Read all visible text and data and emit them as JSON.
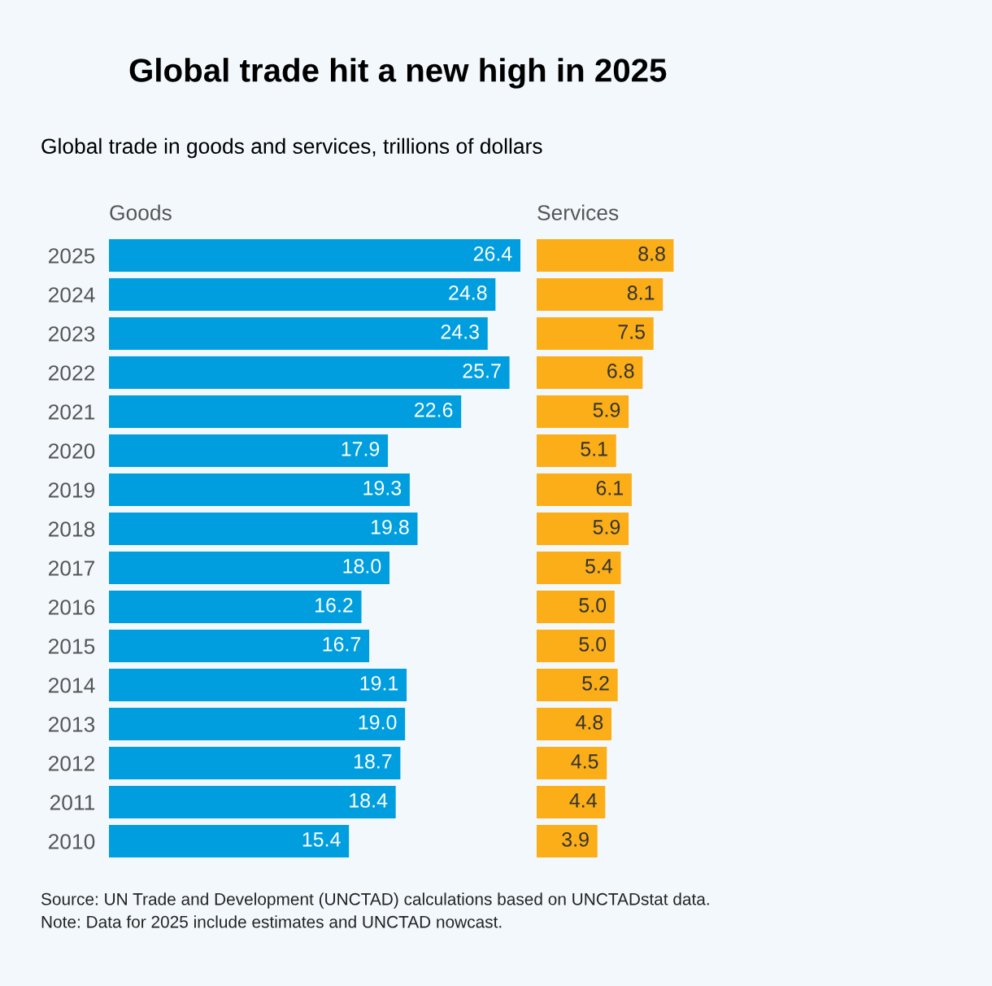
{
  "chart_data": [
    {
      "type": "bar",
      "orientation": "horizontal",
      "title": "Global trade hit a new high in 2025",
      "subtitle": "Global trade in goods and services, trillions of dollars",
      "xlabel": "Goods",
      "categories": [
        "2025",
        "2024",
        "2023",
        "2022",
        "2021",
        "2020",
        "2019",
        "2018",
        "2017",
        "2016",
        "2015",
        "2014",
        "2013",
        "2012",
        "2011",
        "2010"
      ],
      "series": [
        {
          "color": "#009ede",
          "values": [
            26.4,
            24.8,
            24.3,
            25.7,
            22.6,
            17.9,
            19.3,
            19.8,
            18.0,
            16.2,
            16.7,
            19.1,
            19.0,
            18.7,
            18.4,
            15.4
          ],
          "value_labels": [
            "26.4",
            "24.8",
            "24.3",
            "25.7",
            "22.6",
            "17.9",
            "19.3",
            "19.8",
            "18.0",
            "16.2",
            "16.7",
            "19.1",
            "19.0",
            "18.7",
            "18.4",
            "15.4"
          ]
        }
      ],
      "grid": false,
      "legend": false,
      "tick_labels": "y",
      "annotations": [
        "Source: UN Trade and Development (UNCTAD) calculations based on UNCTADstat data.",
        "Note: Data for 2025 include estimates and UNCTAD nowcast."
      ]
    },
    {
      "type": "bar",
      "orientation": "horizontal",
      "xlabel": "Services",
      "categories": [
        "2025",
        "2024",
        "2023",
        "2022",
        "2021",
        "2020",
        "2019",
        "2018",
        "2017",
        "2016",
        "2015",
        "2014",
        "2013",
        "2012",
        "2011",
        "2010"
      ],
      "series": [
        {
          "color": "#fbae17",
          "values": [
            8.8,
            8.1,
            7.5,
            6.8,
            5.9,
            5.1,
            6.1,
            5.9,
            5.4,
            5.0,
            5.0,
            5.2,
            4.8,
            4.5,
            4.4,
            3.9
          ],
          "value_labels": [
            "8.8",
            "8.1",
            "7.5",
            "6.8",
            "5.9",
            "5.1",
            "6.1",
            "5.9",
            "5.4",
            "5.0",
            "5.0",
            "5.2",
            "4.8",
            "4.5",
            "4.4",
            "3.9"
          ]
        }
      ],
      "grid": false,
      "legend": false,
      "tick_labels": false
    }
  ]
}
